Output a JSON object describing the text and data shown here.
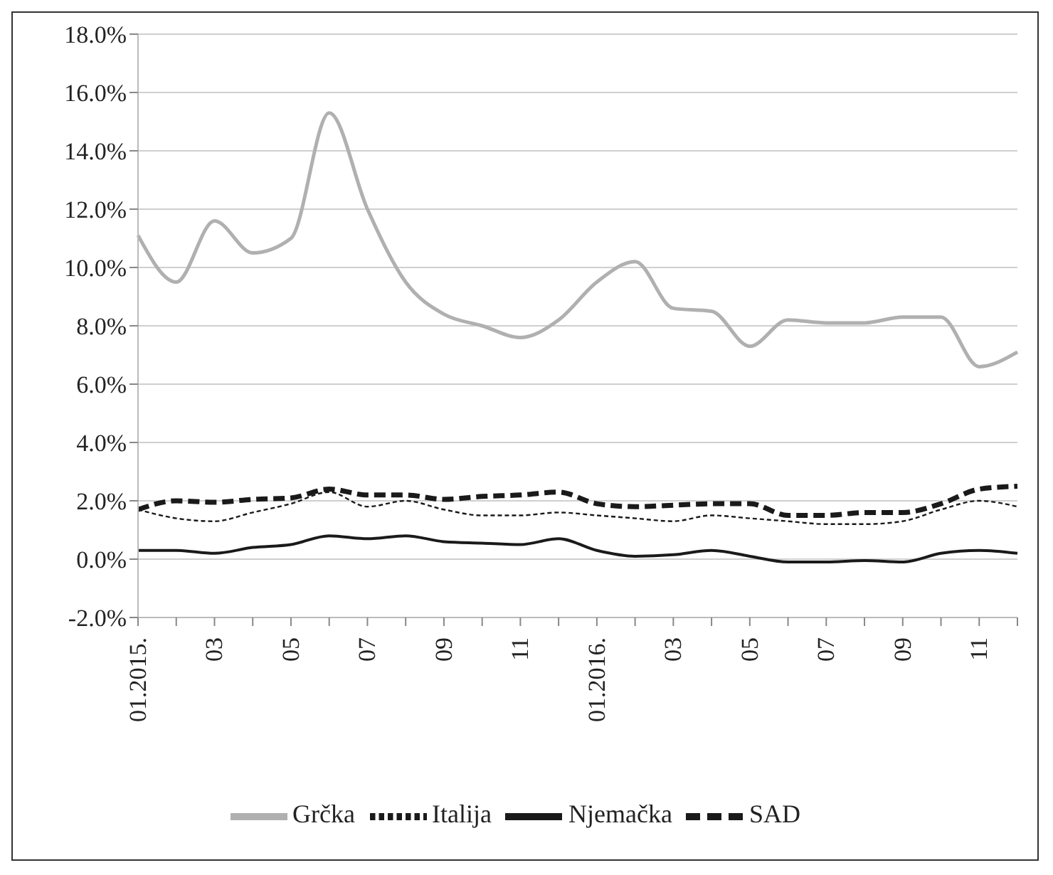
{
  "chart_data": {
    "type": "line",
    "categories": [
      "01.2015.",
      null,
      "03",
      null,
      "05",
      null,
      "07",
      null,
      "09",
      null,
      "11",
      null,
      "01.2016.",
      null,
      "03",
      null,
      "05",
      null,
      "07",
      null,
      "09",
      null,
      "11",
      null
    ],
    "series": [
      {
        "name": "Njemačka",
        "color": "#1a1a1a",
        "line_style": "solid",
        "values": [
          0.3,
          0.3,
          0.2,
          0.4,
          0.5,
          0.8,
          0.7,
          0.8,
          0.6,
          0.55,
          0.5,
          0.7,
          0.3,
          0.1,
          0.15,
          0.3,
          0.1,
          -0.1,
          -0.1,
          -0.05,
          -0.1,
          0.2,
          0.3,
          0.2
        ]
      },
      {
        "name": "Italija",
        "color": "#1a1a1a",
        "line_style": "dashed",
        "values": [
          1.7,
          1.4,
          1.3,
          1.6,
          1.9,
          2.3,
          1.8,
          2.0,
          1.7,
          1.5,
          1.5,
          1.6,
          1.5,
          1.4,
          1.3,
          1.5,
          1.4,
          1.3,
          1.2,
          1.2,
          1.3,
          1.7,
          2.0,
          1.8
        ]
      },
      {
        "name": "Grčka",
        "color": "#b0b0b0",
        "line_style": "solid",
        "values": [
          11.1,
          9.5,
          11.6,
          10.5,
          11.0,
          15.3,
          12.0,
          9.5,
          8.4,
          8.0,
          7.6,
          8.2,
          9.5,
          10.2,
          8.6,
          8.5,
          7.3,
          8.2,
          8.1,
          8.1,
          8.3,
          8.3,
          6.6,
          7.1
        ]
      },
      {
        "name": "SAD",
        "color": "#1a1a1a",
        "line_style": "dashed",
        "values": [
          1.7,
          2.0,
          1.95,
          2.05,
          2.1,
          2.4,
          2.2,
          2.2,
          2.05,
          2.15,
          2.2,
          2.3,
          1.9,
          1.8,
          1.85,
          1.9,
          1.9,
          1.5,
          1.5,
          1.6,
          1.6,
          1.9,
          2.4,
          2.5
        ]
      }
    ],
    "ylim": [
      -2,
      18
    ],
    "yticks": [
      {
        "value": -2,
        "label": "-2.0%"
      },
      {
        "value": 0,
        "label": "0.0%"
      },
      {
        "value": 2,
        "label": "2.0%"
      },
      {
        "value": 4,
        "label": "4.0%"
      },
      {
        "value": 6,
        "label": "6.0%"
      },
      {
        "value": 8,
        "label": "8.0%"
      },
      {
        "value": 10,
        "label": "10.0%"
      },
      {
        "value": 12,
        "label": "12.0%"
      },
      {
        "value": 14,
        "label": "14.0%"
      },
      {
        "value": 16,
        "label": "16.0%"
      },
      {
        "value": 18,
        "label": "18.0%"
      }
    ],
    "grid": "y",
    "legend": "bottom",
    "marker": "none"
  }
}
